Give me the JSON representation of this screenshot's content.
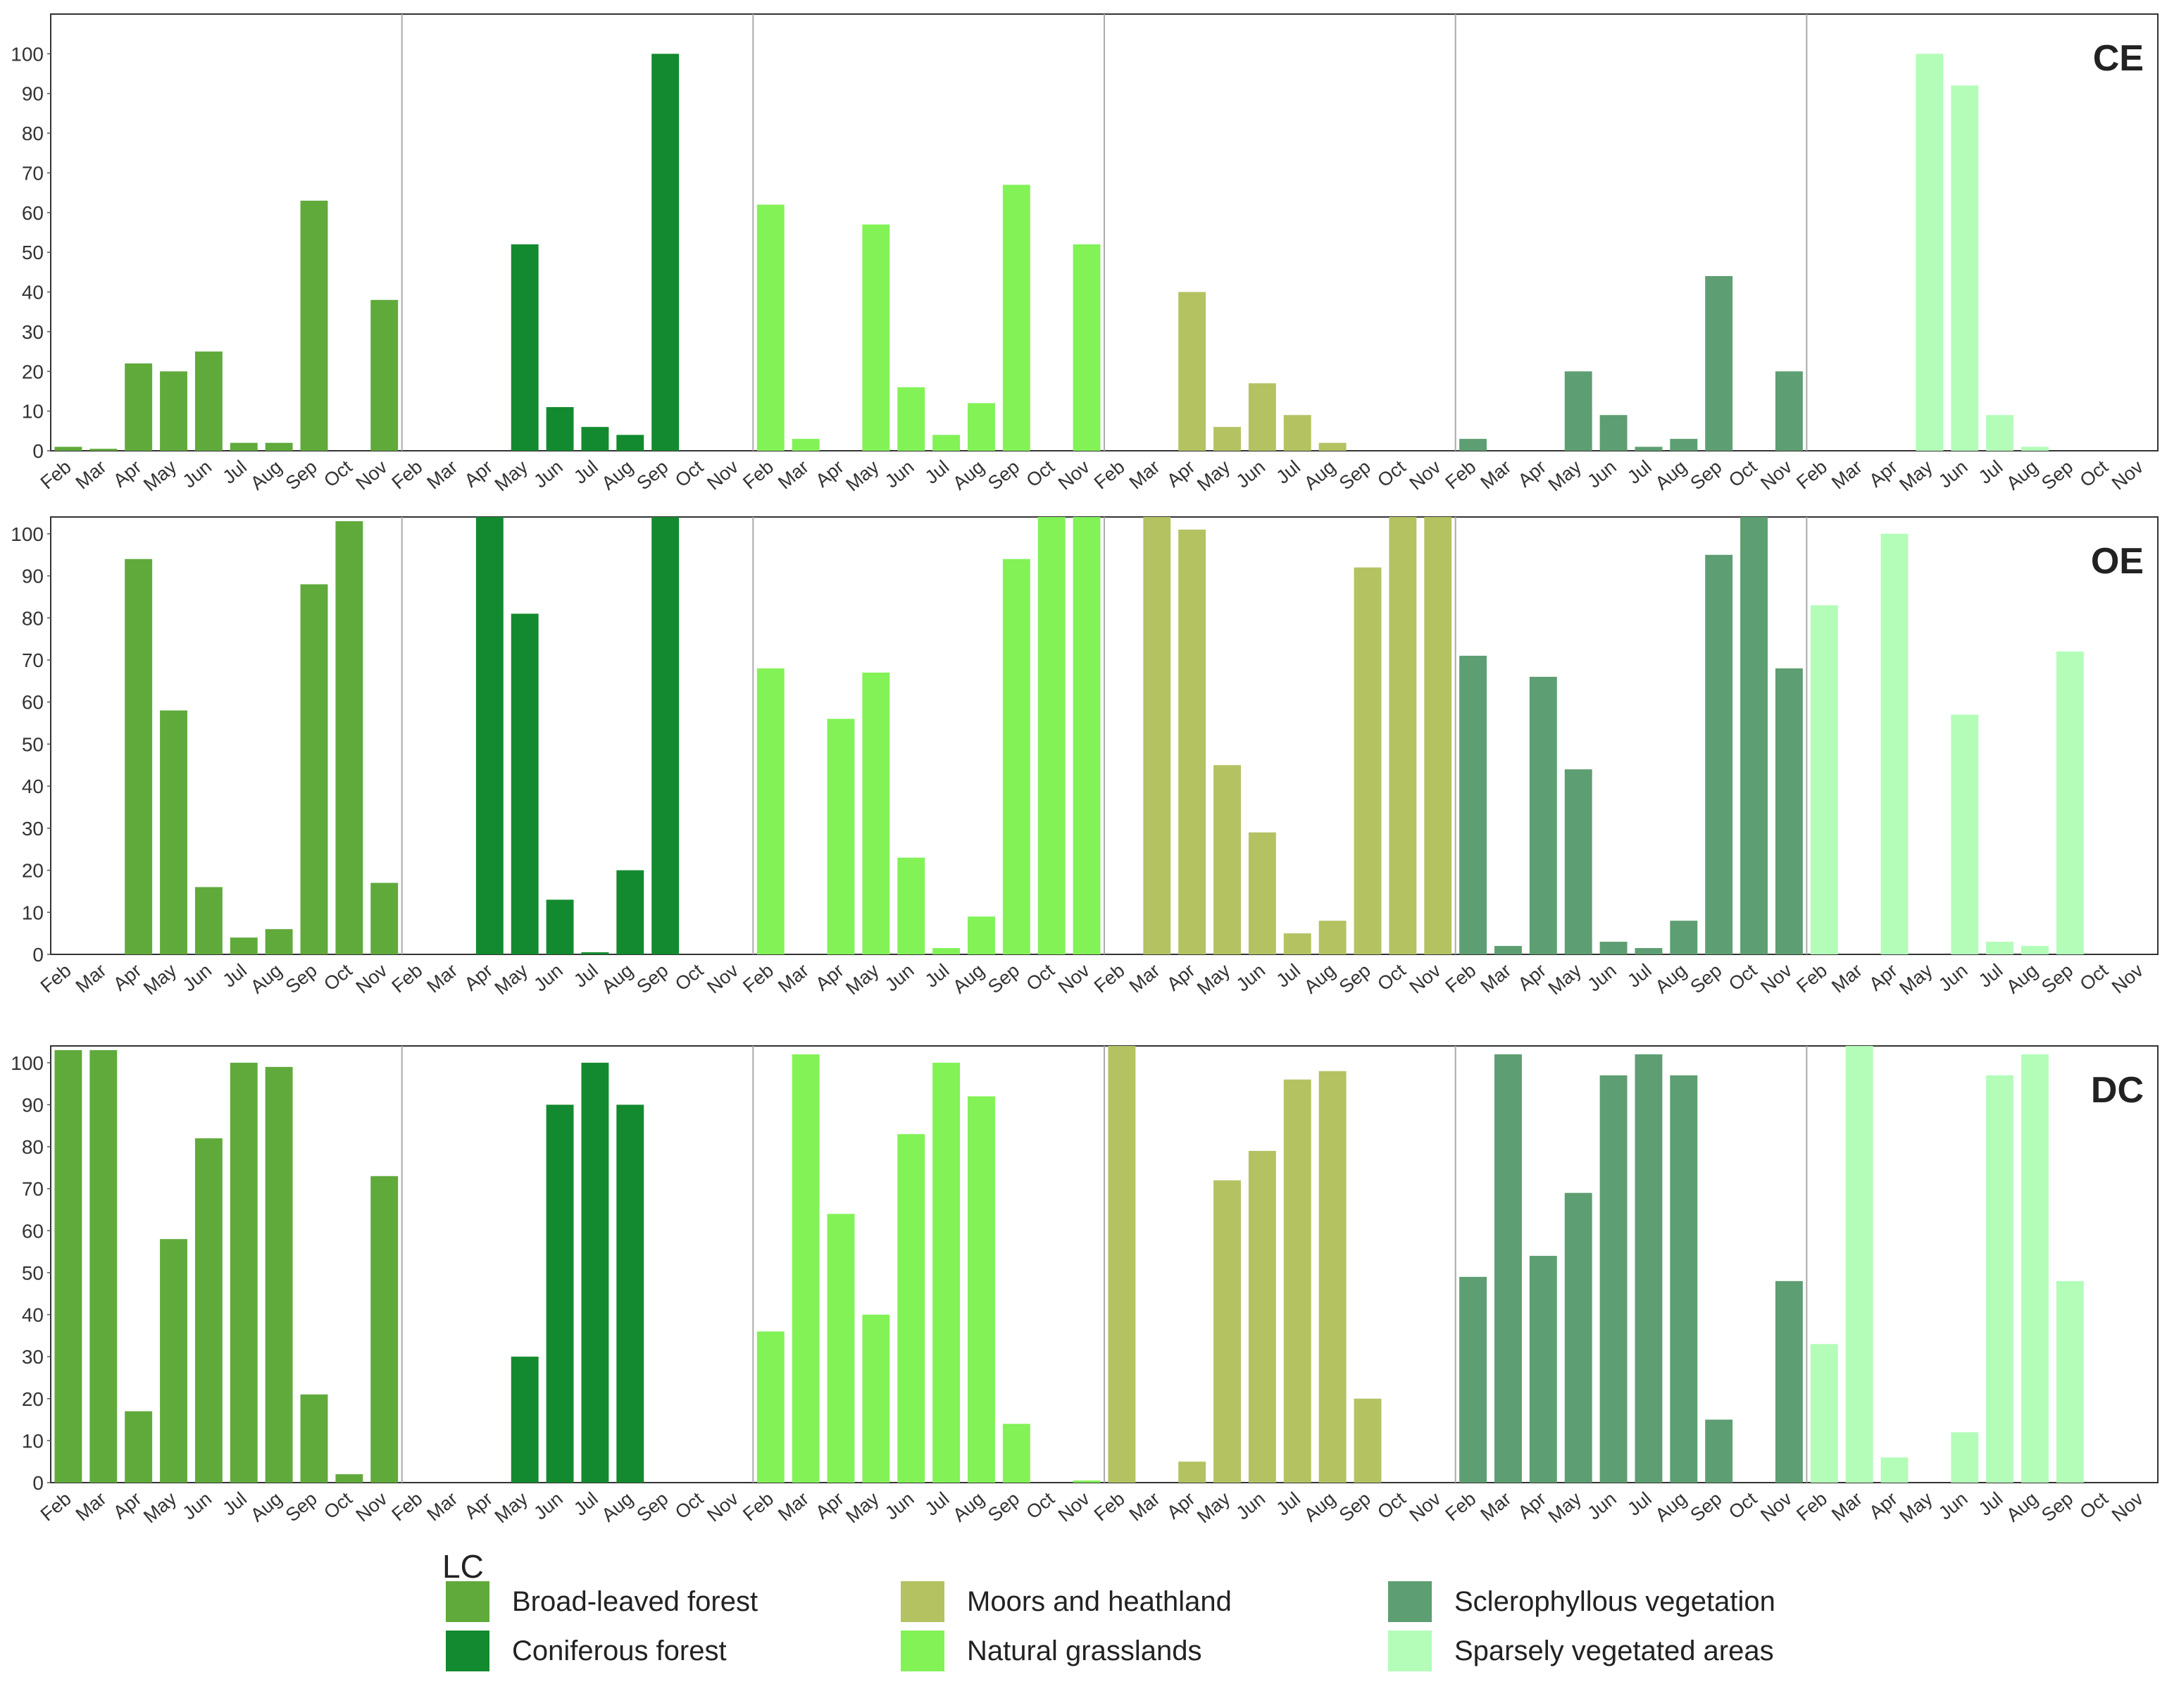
{
  "chart_data": {
    "type": "bar",
    "months": [
      "Feb",
      "Mar",
      "Apr",
      "May",
      "Jun",
      "Jul",
      "Aug",
      "Sep",
      "Oct",
      "Nov"
    ],
    "yticks": [
      0,
      10,
      20,
      30,
      40,
      50,
      60,
      70,
      80,
      90,
      100
    ],
    "land_cover": [
      {
        "name": "Broad-leaved forest",
        "color": "#60aa3c"
      },
      {
        "name": "Coniferous forest",
        "color": "#138a2f"
      },
      {
        "name": "Natural grasslands",
        "color": "#82f257"
      },
      {
        "name": "Moors and heathland",
        "color": "#b4c262"
      },
      {
        "name": "Sclerophyllous vegetation",
        "color": "#5d9e72"
      },
      {
        "name": "Sparsely vegetated areas",
        "color": "#b3fdb9"
      }
    ],
    "rows": [
      {
        "label": "CE",
        "ylim": [
          0,
          110
        ],
        "values": [
          [
            1,
            0.5,
            22,
            20,
            25,
            2,
            2,
            63,
            0,
            38
          ],
          [
            0,
            0,
            0,
            52,
            11,
            6,
            4,
            100,
            0,
            0
          ],
          [
            62,
            3,
            0,
            57,
            16,
            4,
            12,
            67,
            0,
            52
          ],
          [
            0,
            0,
            40,
            6,
            17,
            9,
            2,
            0,
            0,
            0
          ],
          [
            3,
            0,
            0,
            20,
            9,
            1,
            3,
            44,
            0,
            20
          ],
          [
            0,
            0,
            0,
            100,
            92,
            9,
            1,
            0,
            0,
            0
          ]
        ]
      },
      {
        "label": "OE",
        "ylim": [
          0,
          104
        ],
        "values": [
          [
            0,
            0,
            94,
            58,
            16,
            4,
            6,
            88,
            103,
            17
          ],
          [
            0,
            0,
            104,
            81,
            13,
            0.5,
            20,
            104,
            0,
            0
          ],
          [
            68,
            0,
            56,
            67,
            23,
            1.5,
            9,
            94,
            104,
            104
          ],
          [
            0,
            104,
            101,
            45,
            29,
            5,
            8,
            92,
            104,
            104
          ],
          [
            71,
            2,
            66,
            44,
            3,
            1.5,
            8,
            95,
            104,
            68
          ],
          [
            83,
            0,
            100,
            0,
            57,
            3,
            2,
            72,
            0,
            0
          ]
        ]
      },
      {
        "label": "DC",
        "ylim": [
          0,
          104
        ],
        "values": [
          [
            103,
            103,
            17,
            58,
            82,
            100,
            99,
            21,
            2,
            73
          ],
          [
            0,
            0,
            0,
            30,
            90,
            100,
            90,
            0,
            0,
            0
          ],
          [
            36,
            102,
            64,
            40,
            83,
            100,
            92,
            14,
            0,
            0.5
          ],
          [
            104,
            0,
            5,
            72,
            79,
            96,
            98,
            20,
            0,
            0
          ],
          [
            49,
            102,
            54,
            69,
            97,
            102,
            97,
            15,
            0,
            48
          ],
          [
            33,
            104,
            6,
            0,
            12,
            97,
            102,
            48,
            0,
            0
          ]
        ]
      }
    ],
    "legend_title": "LC",
    "legend_order": [
      "Broad-leaved forest",
      "Coniferous forest",
      "Moors and heathland",
      "Natural grasslands",
      "Sclerophyllous vegetation",
      "Sparsely vegetated areas"
    ]
  }
}
